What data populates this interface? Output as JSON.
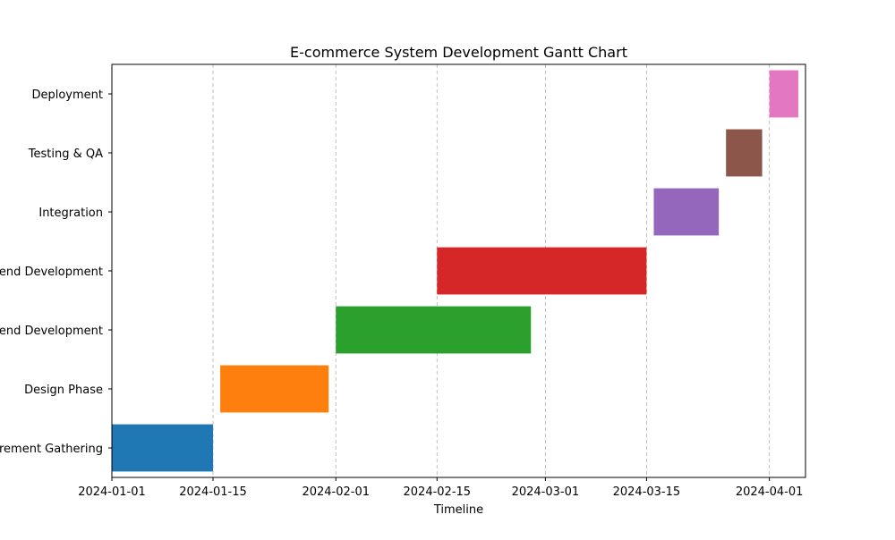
{
  "chart_data": {
    "type": "bar",
    "orientation": "horizontal",
    "title": "E-commerce System Development Gantt Chart",
    "xlabel": "Timeline",
    "ylabel": "",
    "x_axis_type": "date",
    "xlim": [
      "2024-01-01",
      "2024-04-06"
    ],
    "x_ticks": [
      "2024-01-01",
      "2024-01-15",
      "2024-02-01",
      "2024-02-15",
      "2024-03-01",
      "2024-03-15",
      "2024-04-01"
    ],
    "grid": {
      "x": true,
      "y": false,
      "style": "dashed"
    },
    "tasks": [
      {
        "name": "Requirement Gathering",
        "start": "2024-01-01",
        "end": "2024-01-15",
        "color": "#1f77b4"
      },
      {
        "name": "Design Phase",
        "start": "2024-01-16",
        "end": "2024-01-31",
        "color": "#ff7f0e"
      },
      {
        "name": "Frontend Development",
        "start": "2024-02-01",
        "end": "2024-02-28",
        "color": "#2ca02c"
      },
      {
        "name": "Backend Development",
        "start": "2024-02-15",
        "end": "2024-03-15",
        "color": "#d62728"
      },
      {
        "name": "Integration",
        "start": "2024-03-16",
        "end": "2024-03-25",
        "color": "#9467bd"
      },
      {
        "name": "Testing & QA",
        "start": "2024-03-26",
        "end": "2024-03-31",
        "color": "#8c564b"
      },
      {
        "name": "Deployment",
        "start": "2024-04-01",
        "end": "2024-04-05",
        "color": "#e377c2"
      }
    ]
  }
}
